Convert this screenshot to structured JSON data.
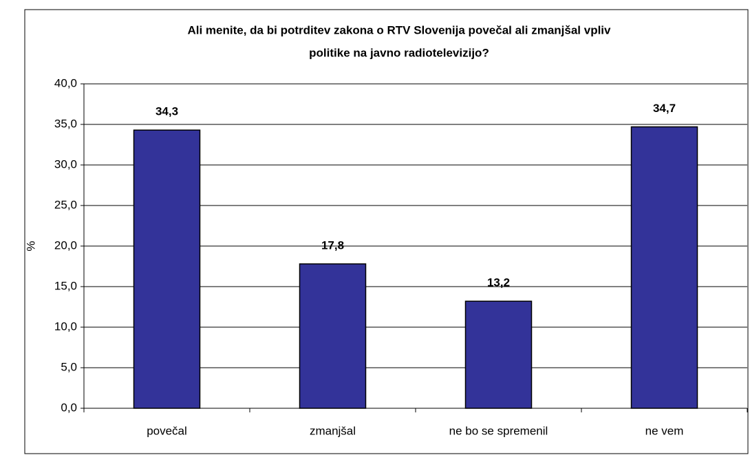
{
  "chart_data": {
    "type": "bar",
    "title": [
      "Ali menite, da bi potrditev zakona o RTV Slovenija povečal ali zmanjšal vpliv",
      "politike na javno radiotelevizijo?"
    ],
    "y_label": "%",
    "categories": [
      "povečal",
      "zmanjšal",
      "ne bo se spremenil",
      "ne vem"
    ],
    "values": [
      34.3,
      17.8,
      13.2,
      34.7
    ],
    "value_labels": [
      "34,3",
      "17,8",
      "13,2",
      "34,7"
    ],
    "color": "#333399",
    "ylim": [
      0,
      40
    ],
    "yticks": [
      {
        "value": 0,
        "label": "0,0"
      },
      {
        "value": 5,
        "label": "5,0"
      },
      {
        "value": 10,
        "label": "10,0"
      },
      {
        "value": 15,
        "label": "15,0"
      },
      {
        "value": 20,
        "label": "20,0"
      },
      {
        "value": 25,
        "label": "25,0"
      },
      {
        "value": 30,
        "label": "30,0"
      },
      {
        "value": 35,
        "label": "35,0"
      },
      {
        "value": 40,
        "label": "40,0"
      }
    ],
    "grid": true
  }
}
